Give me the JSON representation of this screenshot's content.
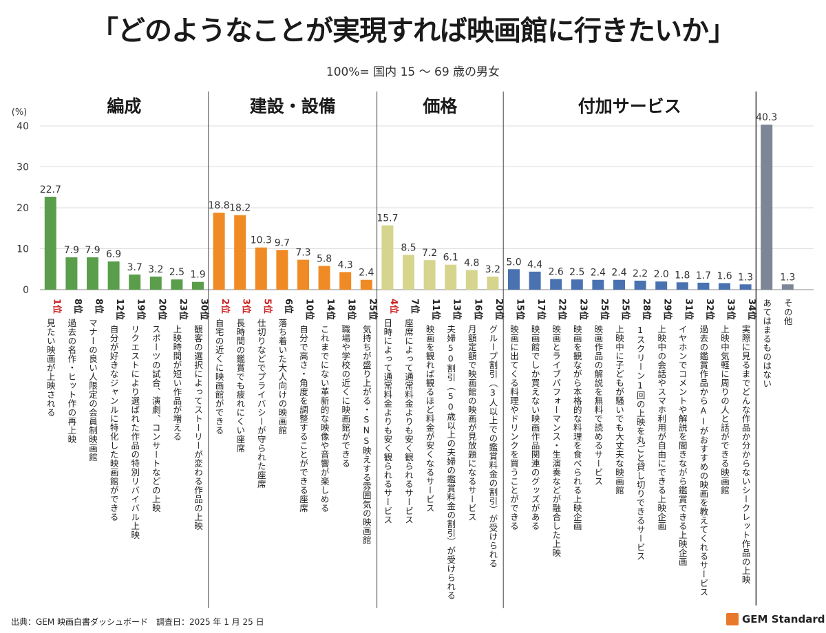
{
  "title": "「どのようなことが実現すれば映画館に行きたいか」",
  "subtitle": "100%= 国内 15 〜 69 歳の男女",
  "footer": "出典：GEM 映画白書ダッシュボード　調査日：2025 年 1 月 25 日",
  "brand": "GEM Standard",
  "colors": {
    "編成": "#5a9e4b",
    "建設・設備": "#f08a24",
    "価格": "#d6d58e",
    "付加サービス": "#4a72b0",
    "その他": "#7c8696",
    "top_rank": "#cc2222"
  },
  "chart_data": {
    "type": "bar",
    "title": "「どのようなことが実現すれば映画館に行きたいか」",
    "subtitle": "100%= 国内 15 〜 69 歳の男女",
    "ylabel": "(%)",
    "ylim": [
      0,
      40
    ],
    "yticks": [
      0,
      10,
      20,
      30,
      40
    ],
    "grid": true,
    "groups": [
      "編成",
      "建設・設備",
      "価格",
      "付加サービス",
      ""
    ],
    "bars": [
      {
        "rank": "1位",
        "label": "見たい映画が上映される",
        "value": 22.7,
        "group": "編成",
        "top": true
      },
      {
        "rank": "8位",
        "label": "過去の名作・ヒット作の再上映",
        "value": 7.9,
        "group": "編成"
      },
      {
        "rank": "8位",
        "label": "マナーの良い人限定の会員制映画館",
        "value": 7.9,
        "group": "編成"
      },
      {
        "rank": "12位",
        "label": "自分が好きなジャンルに特化した映画館ができる",
        "value": 6.9,
        "group": "編成"
      },
      {
        "rank": "19位",
        "label": "リクエストにより選ばれた作品の特別リバイバル上映",
        "value": 3.7,
        "group": "編成"
      },
      {
        "rank": "20位",
        "label": "スポーツの試合、演劇、コンサートなどの上映",
        "value": 3.2,
        "group": "編成"
      },
      {
        "rank": "23位",
        "label": "上映時間が短い作品が増える",
        "value": 2.5,
        "group": "編成"
      },
      {
        "rank": "30位",
        "label": "観客の選択によってストーリーが変わる作品の上映",
        "value": 1.9,
        "group": "編成"
      },
      {
        "rank": "2位",
        "label": "自宅の近くに映画館ができる",
        "value": 18.8,
        "group": "建設・設備",
        "top": true
      },
      {
        "rank": "3位",
        "label": "長時間の鑑賞でも疲れにくい座席",
        "value": 18.2,
        "group": "建設・設備",
        "top": true
      },
      {
        "rank": "5位",
        "label": "仕切りなどでプライバシーが守られた座席",
        "value": 10.3,
        "group": "建設・設備",
        "top": true
      },
      {
        "rank": "6位",
        "label": "落ち着いた大人向けの映画館",
        "value": 9.7,
        "group": "建設・設備"
      },
      {
        "rank": "10位",
        "label": "自分で高さ・角度を調整することができる座席",
        "value": 7.3,
        "group": "建設・設備"
      },
      {
        "rank": "14位",
        "label": "これまでにない革新的な映像や音響が楽しめる",
        "value": 5.8,
        "group": "建設・設備"
      },
      {
        "rank": "18位",
        "label": "職場や学校の近くに映画館ができる",
        "value": 4.3,
        "group": "建設・設備"
      },
      {
        "rank": "25位",
        "label": "気持ちが盛り上がる・SNS映えする雰囲気の映画館",
        "value": 2.4,
        "group": "建設・設備"
      },
      {
        "rank": "4位",
        "label": "日時によって通常料金よりも安く観られるサービス",
        "value": 15.7,
        "group": "価格",
        "top": true
      },
      {
        "rank": "7位",
        "label": "座席によって通常料金よりも安く観られるサービス",
        "value": 8.5,
        "group": "価格"
      },
      {
        "rank": "11位",
        "label": "映画を観れば観るほど料金が安くなるサービス",
        "value": 7.2,
        "group": "価格"
      },
      {
        "rank": "13位",
        "label": "夫婦50割引（50歳以上の夫婦の鑑賞料金の割引）が受けられる",
        "value": 6.1,
        "group": "価格"
      },
      {
        "rank": "16位",
        "label": "月額定額で映画館の映画が見放題になるサービス",
        "value": 4.8,
        "group": "価格"
      },
      {
        "rank": "20位",
        "label": "グループ割引（3人以上での鑑賞料金の割引）が受けられる",
        "value": 3.2,
        "group": "価格"
      },
      {
        "rank": "15位",
        "label": "映画に出てくる料理やドリンクを買うことができる",
        "value": 5.0,
        "group": "付加サービス"
      },
      {
        "rank": "17位",
        "label": "映画館でしか買えない映画作品関連のグッズがある",
        "value": 4.4,
        "group": "付加サービス"
      },
      {
        "rank": "22位",
        "label": "映画とライブパフォーマンス・生演奏などが融合した上映",
        "value": 2.6,
        "group": "付加サービス"
      },
      {
        "rank": "23位",
        "label": "映画を観ながら本格的な料理を食べられる上映企画",
        "value": 2.5,
        "group": "付加サービス"
      },
      {
        "rank": "25位",
        "label": "映画作品の解説を無料で読めるサービス",
        "value": 2.4,
        "group": "付加サービス"
      },
      {
        "rank": "25位",
        "label": "上映中に子どもが騒いでも大丈夫な映画館",
        "value": 2.4,
        "group": "付加サービス"
      },
      {
        "rank": "28位",
        "label": "1スクリーン1回の上映を丸ごと貸し切りできるサービス",
        "value": 2.2,
        "group": "付加サービス"
      },
      {
        "rank": "29位",
        "label": "上映中の会話やスマホ利用が自由にできる上映企画",
        "value": 2.0,
        "group": "付加サービス"
      },
      {
        "rank": "31位",
        "label": "イヤホンでコメントや解説を聞きながら鑑賞できる上映企画",
        "value": 1.8,
        "group": "付加サービス"
      },
      {
        "rank": "32位",
        "label": "過去の鑑賞作品からAIがおすすめの映画を教えてくれるサービス",
        "value": 1.7,
        "group": "付加サービス"
      },
      {
        "rank": "33位",
        "label": "上映中気軽に周りの人と話ができる映画館",
        "value": 1.6,
        "group": "付加サービス"
      },
      {
        "rank": "34位",
        "label": "実際に見るまでどんな作品か分からないシークレット作品の上映",
        "value": 1.3,
        "group": "付加サービス"
      },
      {
        "rank": "",
        "label": "あてはまるものはない",
        "value": 40.3,
        "group": "",
        "color_key": "その他"
      },
      {
        "rank": "",
        "label": "その他",
        "value": 1.3,
        "group": "",
        "color_key": "その他"
      }
    ]
  }
}
